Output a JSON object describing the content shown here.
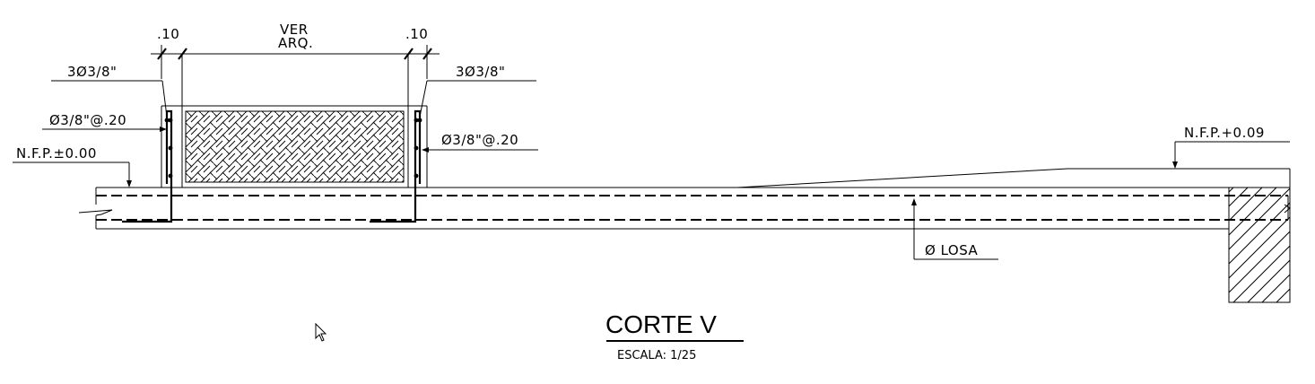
{
  "labels": {
    "dim_left": ".10",
    "dim_right": ".10",
    "ver_line1": "VER",
    "ver_line2": "ARQ.",
    "bars_left": "3Ø3/8\"",
    "bars_right": "3Ø3/8\"",
    "stirrup_left": "Ø3/8\"@.20",
    "stirrup_right": "Ø3/8\"@.20",
    "level_left": "N.F.P.±0.00",
    "level_right": "N.F.P.+0.09",
    "slab": "Ø LOSA"
  },
  "title": {
    "name": "CORTE V",
    "scale": "ESCALA:  1/25"
  }
}
